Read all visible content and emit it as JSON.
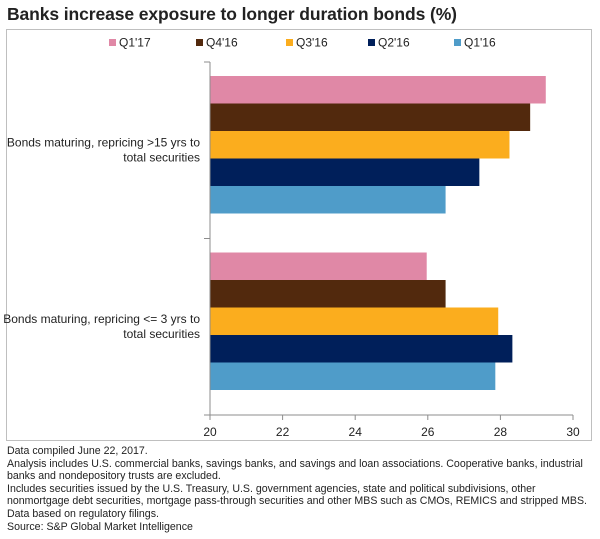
{
  "title": "Banks increase exposure to longer duration bonds (%)",
  "chart_data": {
    "type": "bar",
    "orientation": "horizontal",
    "title": "Banks increase exposure to longer duration bonds (%)",
    "categories": [
      "Bonds maturing, repricing >15 yrs to total securities",
      "Bonds maturing, repricing <= 3 yrs to total securities"
    ],
    "category_lines": [
      [
        "Bonds maturing, repricing >15 yrs to",
        "total securities"
      ],
      [
        "Bonds maturing, repricing <= 3 yrs to",
        "total securities"
      ]
    ],
    "series": [
      {
        "name": "Q1'17",
        "color": "#e088a6",
        "values": [
          29.25,
          25.97
        ]
      },
      {
        "name": "Q4'16",
        "color": "#52290d",
        "values": [
          28.82,
          26.49
        ]
      },
      {
        "name": "Q3'16",
        "color": "#fbad1e",
        "values": [
          28.25,
          27.94
        ]
      },
      {
        "name": "Q2'16",
        "color": "#001f5a",
        "values": [
          27.42,
          28.33
        ]
      },
      {
        "name": "Q1'16",
        "color": "#4f9cc9",
        "values": [
          26.49,
          27.86
        ]
      }
    ],
    "xlim": [
      20,
      30
    ],
    "xticks": [
      20,
      22,
      24,
      26,
      28,
      30
    ],
    "xlabel": "",
    "ylabel": "",
    "grid": false,
    "legend_position": "top"
  },
  "notes": [
    "Data compiled June 22, 2017.",
    "Analysis includes U.S. commercial banks, savings banks, and savings and loan associations. Cooperative banks, industrial",
    "banks and nondepository trusts are excluded.",
    "Includes securities issued by the U.S. Treasury, U.S. government agencies, state and political subdivisions, other",
    "nonmortgage debt securities, mortgage pass-through securities and other MBS such as CMOs, REMICS and stripped MBS.",
    "Data based on regulatory filings.",
    "Source: S&P Global Market Intelligence"
  ]
}
